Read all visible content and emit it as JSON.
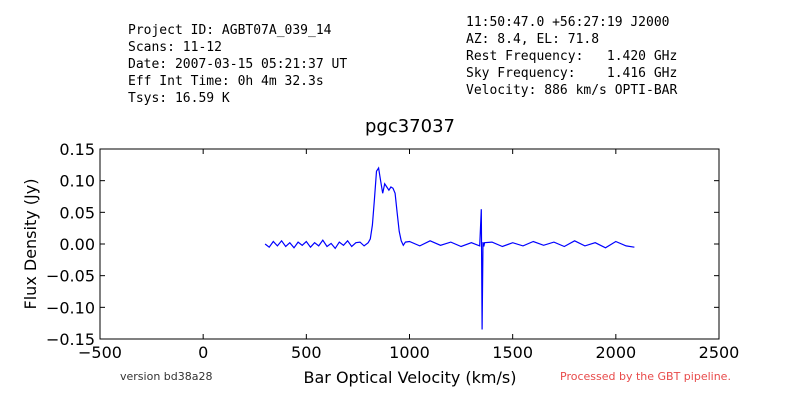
{
  "header": {
    "left": [
      "Project ID: AGBT07A_039_14",
      "Scans: 11-12",
      "Date: 2007-03-15 05:21:37 UT",
      "Eff Int Time: 0h 4m 32.3s",
      "Tsys: 16.59 K"
    ],
    "right": [
      "11:50:47.0 +56:27:19 J2000",
      "AZ: 8.4, EL: 71.8",
      "Rest Frequency:   1.420 GHz",
      "Sky Frequency:    1.416 GHz",
      "Velocity: 886 km/s OPTI-BAR"
    ]
  },
  "footer": {
    "version": "version bd38a28",
    "pipeline": "Processed by the GBT pipeline.",
    "pipeline_color": "#e84a4a"
  },
  "chart_data": {
    "type": "line",
    "title": "pgc37037",
    "xlabel": "Bar Optical Velocity (km/s)",
    "ylabel": "Flux Density (Jy)",
    "xlim": [
      -500,
      2500
    ],
    "ylim": [
      -0.15,
      0.15
    ],
    "xticks": [
      "−500",
      "0",
      "500",
      "1000",
      "1500",
      "2000",
      "2500"
    ],
    "xtick_values": [
      -500,
      0,
      500,
      1000,
      1500,
      2000,
      2500
    ],
    "yticks": [
      "−0.15",
      "−0.10",
      "−0.05",
      "0.00",
      "0.05",
      "0.10",
      "0.15"
    ],
    "ytick_values": [
      -0.15,
      -0.1,
      -0.05,
      0.0,
      0.05,
      0.1,
      0.15
    ],
    "grid": false,
    "line_color": "#0000ff",
    "series": [
      {
        "x": [
          300,
          320,
          340,
          360,
          380,
          400,
          420,
          440,
          460,
          480,
          500,
          520,
          540,
          560,
          580,
          600,
          620,
          640,
          660,
          680,
          700,
          720,
          740,
          760,
          780,
          800,
          810,
          820,
          830,
          840,
          850,
          860,
          870,
          880,
          890,
          900,
          910,
          920,
          930,
          940,
          950,
          960,
          970,
          980,
          1000,
          1050,
          1100,
          1150,
          1200,
          1250,
          1300,
          1340,
          1348,
          1352,
          1356,
          1360,
          1364,
          1400,
          1450,
          1500,
          1550,
          1600,
          1650,
          1700,
          1750,
          1800,
          1850,
          1900,
          1950,
          2000,
          2050,
          2090
        ],
        "y": [
          0.0,
          -0.005,
          0.004,
          -0.003,
          0.005,
          -0.004,
          0.002,
          -0.006,
          0.003,
          -0.002,
          0.004,
          -0.005,
          0.002,
          -0.003,
          0.006,
          -0.004,
          0.001,
          -0.007,
          0.003,
          -0.002,
          0.005,
          -0.004,
          0.002,
          0.003,
          -0.003,
          0.002,
          0.008,
          0.03,
          0.07,
          0.115,
          0.12,
          0.1,
          0.08,
          0.095,
          0.09,
          0.085,
          0.09,
          0.088,
          0.08,
          0.05,
          0.02,
          0.005,
          -0.002,
          0.003,
          0.004,
          -0.003,
          0.005,
          -0.002,
          0.003,
          -0.004,
          0.002,
          -0.003,
          0.055,
          -0.135,
          0.003,
          -0.004,
          0.002,
          0.003,
          -0.004,
          0.002,
          -0.003,
          0.004,
          -0.002,
          0.003,
          -0.004,
          0.005,
          -0.003,
          0.002,
          -0.006,
          0.004,
          -0.003,
          -0.005
        ]
      }
    ]
  }
}
